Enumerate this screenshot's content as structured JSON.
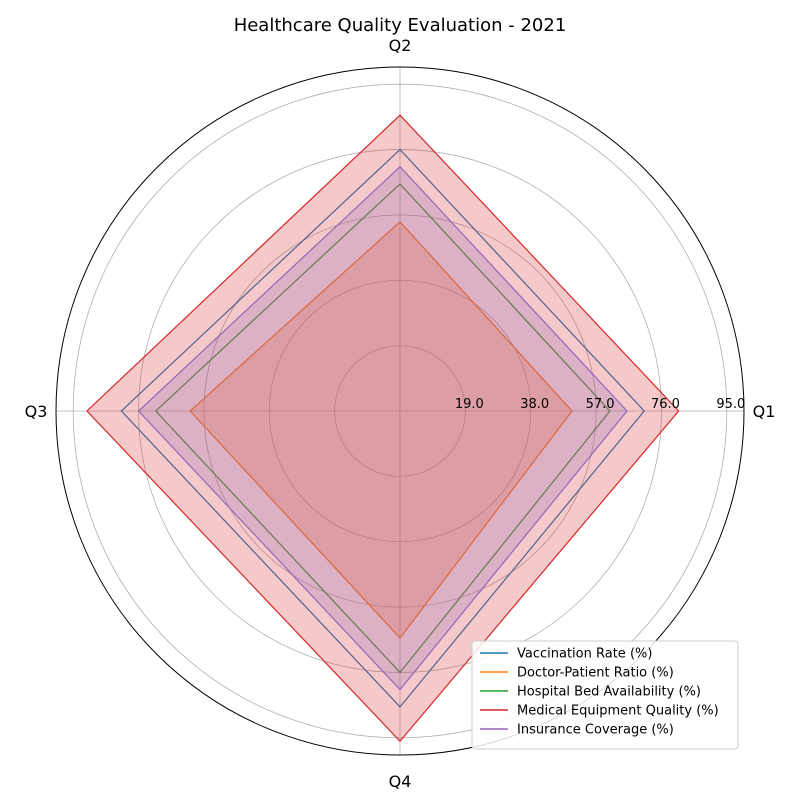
{
  "chart_data": {
    "type": "radar",
    "title": "Healthcare Quality Evaluation - 2021",
    "categories": [
      "Q1",
      "Q2",
      "Q3",
      "Q4"
    ],
    "rlim": [
      0,
      100
    ],
    "rticks": [
      19.0,
      38.0,
      57.0,
      76.0,
      95.0
    ],
    "rtick_labels": [
      "19.0",
      "38.0",
      "57.0",
      "76.0",
      "95.0"
    ],
    "grid": true,
    "legend_position": "lower-right",
    "series": [
      {
        "name": "Vaccination Rate (%)",
        "color": "#1f77b4",
        "values": [
          71,
          76,
          81,
          86
        ],
        "filled": false
      },
      {
        "name": "Doctor-Patient Ratio (%)",
        "color": "#ff7f0e",
        "values": [
          50,
          55,
          61,
          66
        ],
        "filled": true
      },
      {
        "name": "Hospital Bed Availability (%)",
        "color": "#2ca02c",
        "values": [
          61,
          66,
          71,
          76
        ],
        "filled": false
      },
      {
        "name": "Medical Equipment Quality (%)",
        "color": "#d62728",
        "values": [
          81,
          86,
          91,
          96
        ],
        "filled": true
      },
      {
        "name": "Insurance Coverage (%)",
        "color": "#9467bd",
        "values": [
          66,
          71,
          76,
          81
        ],
        "filled": true
      }
    ]
  }
}
